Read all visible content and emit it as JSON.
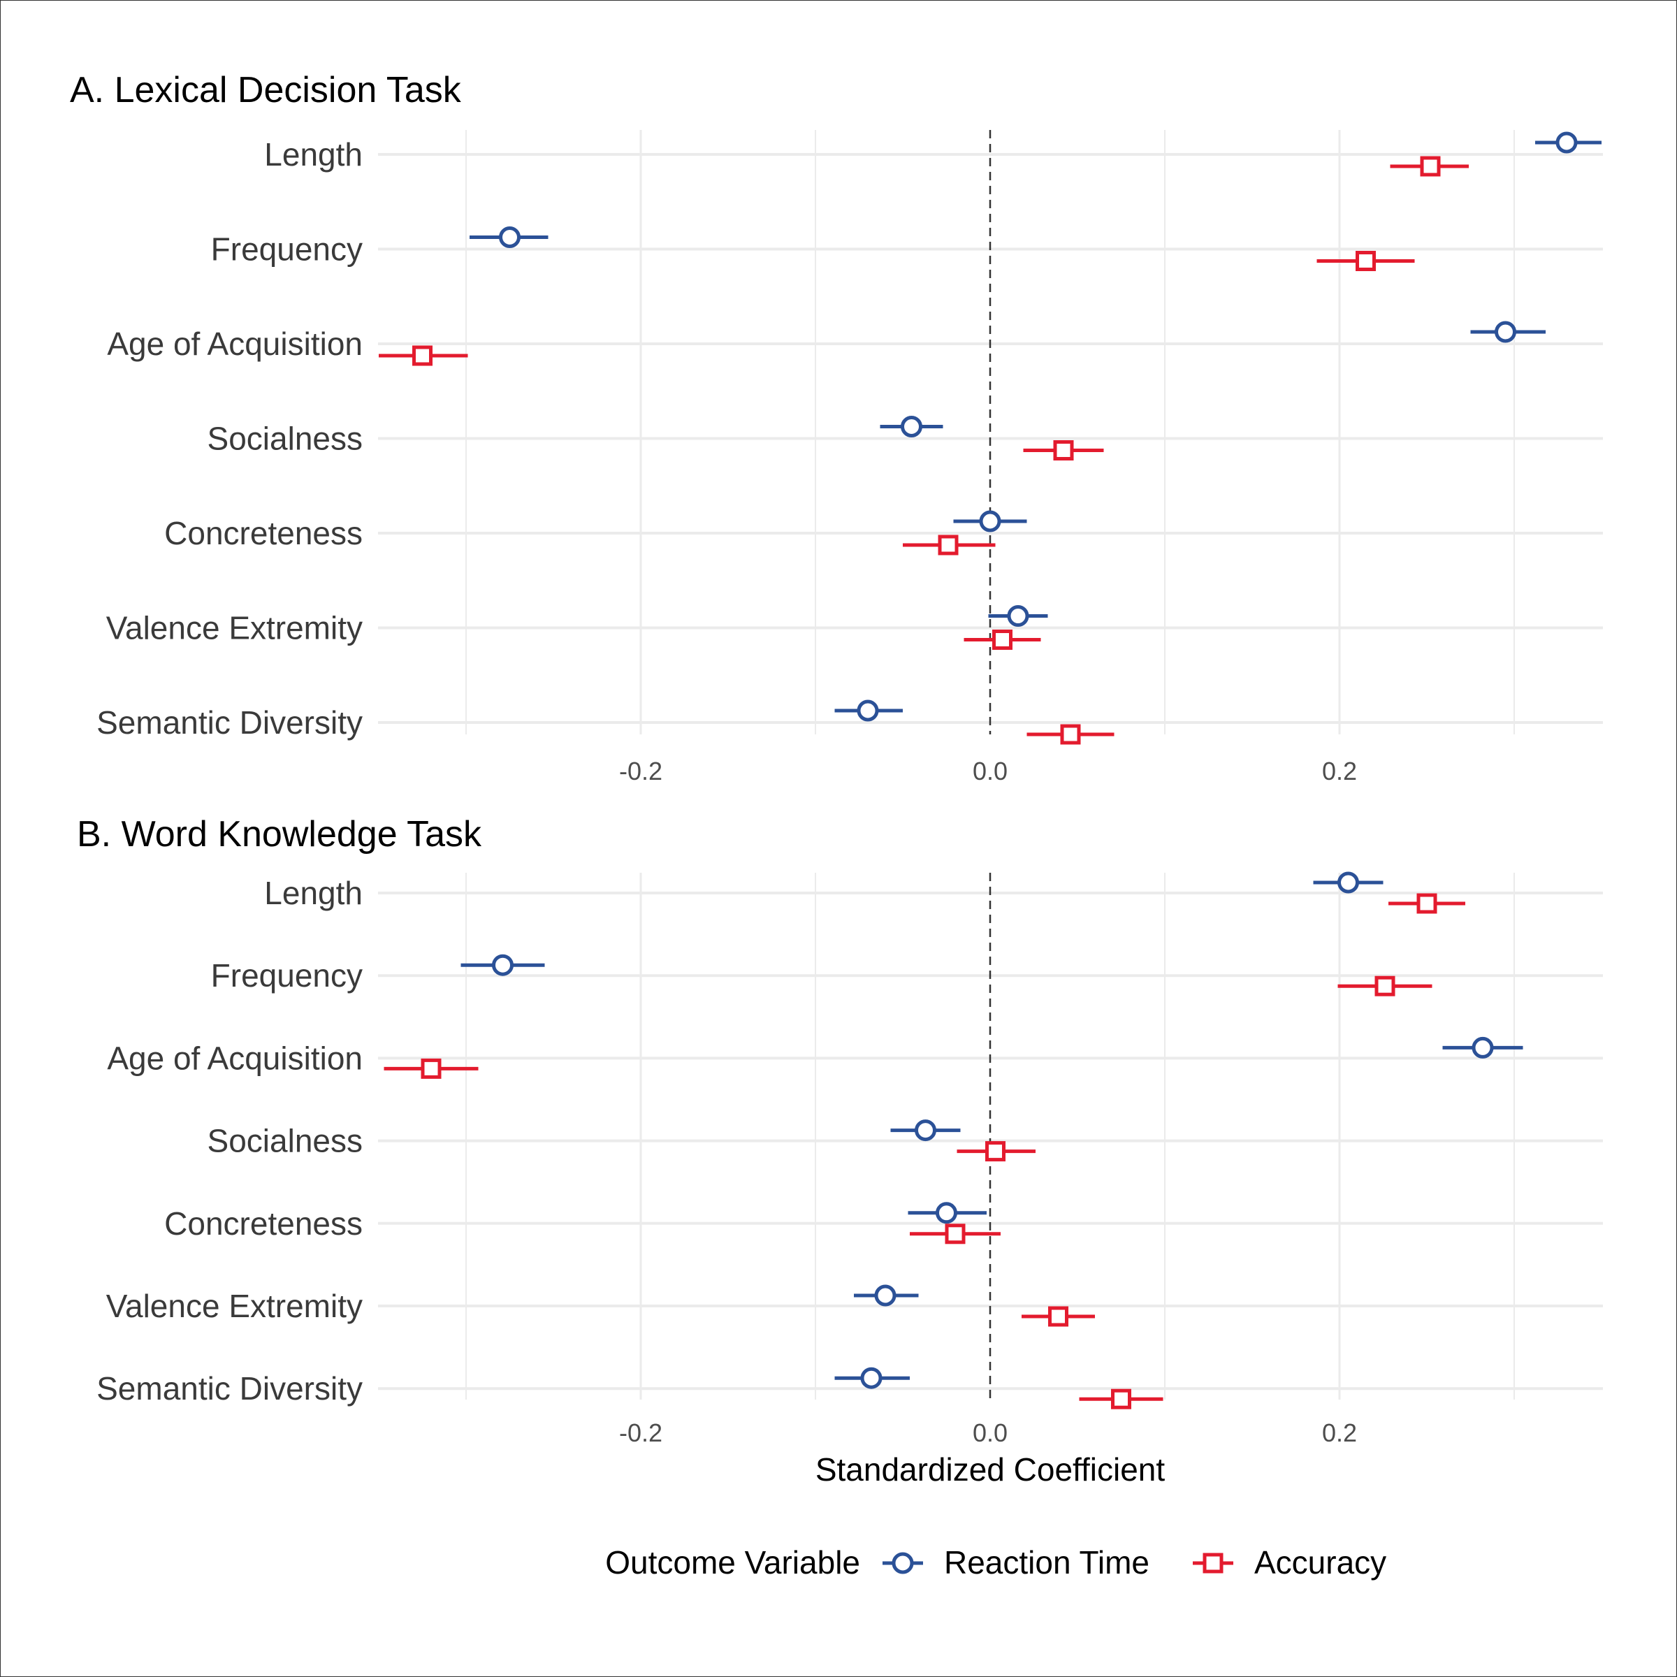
{
  "chart_data": [
    {
      "type": "scatter",
      "title": "A. Lexical Decision Task",
      "categories": [
        "Length",
        "Frequency",
        "Age of Acquisition",
        "Socialness",
        "Concreteness",
        "Valence Extremity",
        "Semantic Diversity"
      ],
      "x_ticks": [
        "-0.2",
        "0.0",
        "0.2"
      ],
      "xlim": [
        -0.35,
        0.35
      ],
      "reference_line": 0.0,
      "series": [
        {
          "name": "Reaction Time",
          "estimates": [
            0.33,
            -0.275,
            0.295,
            -0.045,
            0.0,
            0.016,
            -0.07
          ],
          "ci_low": [
            0.312,
            -0.298,
            0.275,
            -0.063,
            -0.021,
            -0.001,
            -0.089
          ],
          "ci_high": [
            0.35,
            -0.253,
            0.318,
            -0.027,
            0.021,
            0.033,
            -0.05
          ]
        },
        {
          "name": "Accuracy",
          "estimates": [
            0.252,
            0.215,
            -0.325,
            0.042,
            -0.024,
            0.007,
            0.046
          ],
          "ci_low": [
            0.229,
            0.187,
            -0.35,
            0.019,
            -0.05,
            -0.015,
            0.021
          ],
          "ci_high": [
            0.274,
            0.243,
            -0.299,
            0.065,
            0.003,
            0.029,
            0.071
          ]
        }
      ],
      "grid": true
    },
    {
      "type": "scatter",
      "title": "B. Word Knowledge Task",
      "categories": [
        "Length",
        "Frequency",
        "Age of Acquisition",
        "Socialness",
        "Concreteness",
        "Valence Extremity",
        "Semantic Diversity"
      ],
      "x_ticks": [
        "-0.2",
        "0.0",
        "0.2"
      ],
      "xlabel": "Standardized Coefficient",
      "xlim": [
        -0.35,
        0.35
      ],
      "reference_line": 0.0,
      "series": [
        {
          "name": "Reaction Time",
          "estimates": [
            0.205,
            -0.279,
            0.282,
            -0.037,
            -0.025,
            -0.06,
            -0.068
          ],
          "ci_low": [
            0.185,
            -0.303,
            0.259,
            -0.057,
            -0.047,
            -0.078,
            -0.089
          ],
          "ci_high": [
            0.225,
            -0.255,
            0.305,
            -0.017,
            -0.002,
            -0.041,
            -0.046
          ]
        },
        {
          "name": "Accuracy",
          "estimates": [
            0.25,
            0.226,
            -0.32,
            0.003,
            -0.02,
            0.039,
            0.075
          ],
          "ci_low": [
            0.228,
            0.199,
            -0.347,
            -0.019,
            -0.046,
            0.018,
            0.051
          ],
          "ci_high": [
            0.272,
            0.253,
            -0.293,
            0.026,
            0.006,
            0.06,
            0.099
          ]
        }
      ],
      "grid": true
    }
  ],
  "legend": {
    "title": "Outcome Variable",
    "items": [
      {
        "label": "Reaction Time",
        "shape": "circle",
        "color": "#2b5197"
      },
      {
        "label": "Accuracy",
        "shape": "square",
        "color": "#e31b2e"
      }
    ],
    "placement": "bottom"
  },
  "colors": {
    "reaction_time": "#2b5197",
    "accuracy": "#e31b2e",
    "grid": "#ebebeb",
    "reference_line": "#333333"
  }
}
